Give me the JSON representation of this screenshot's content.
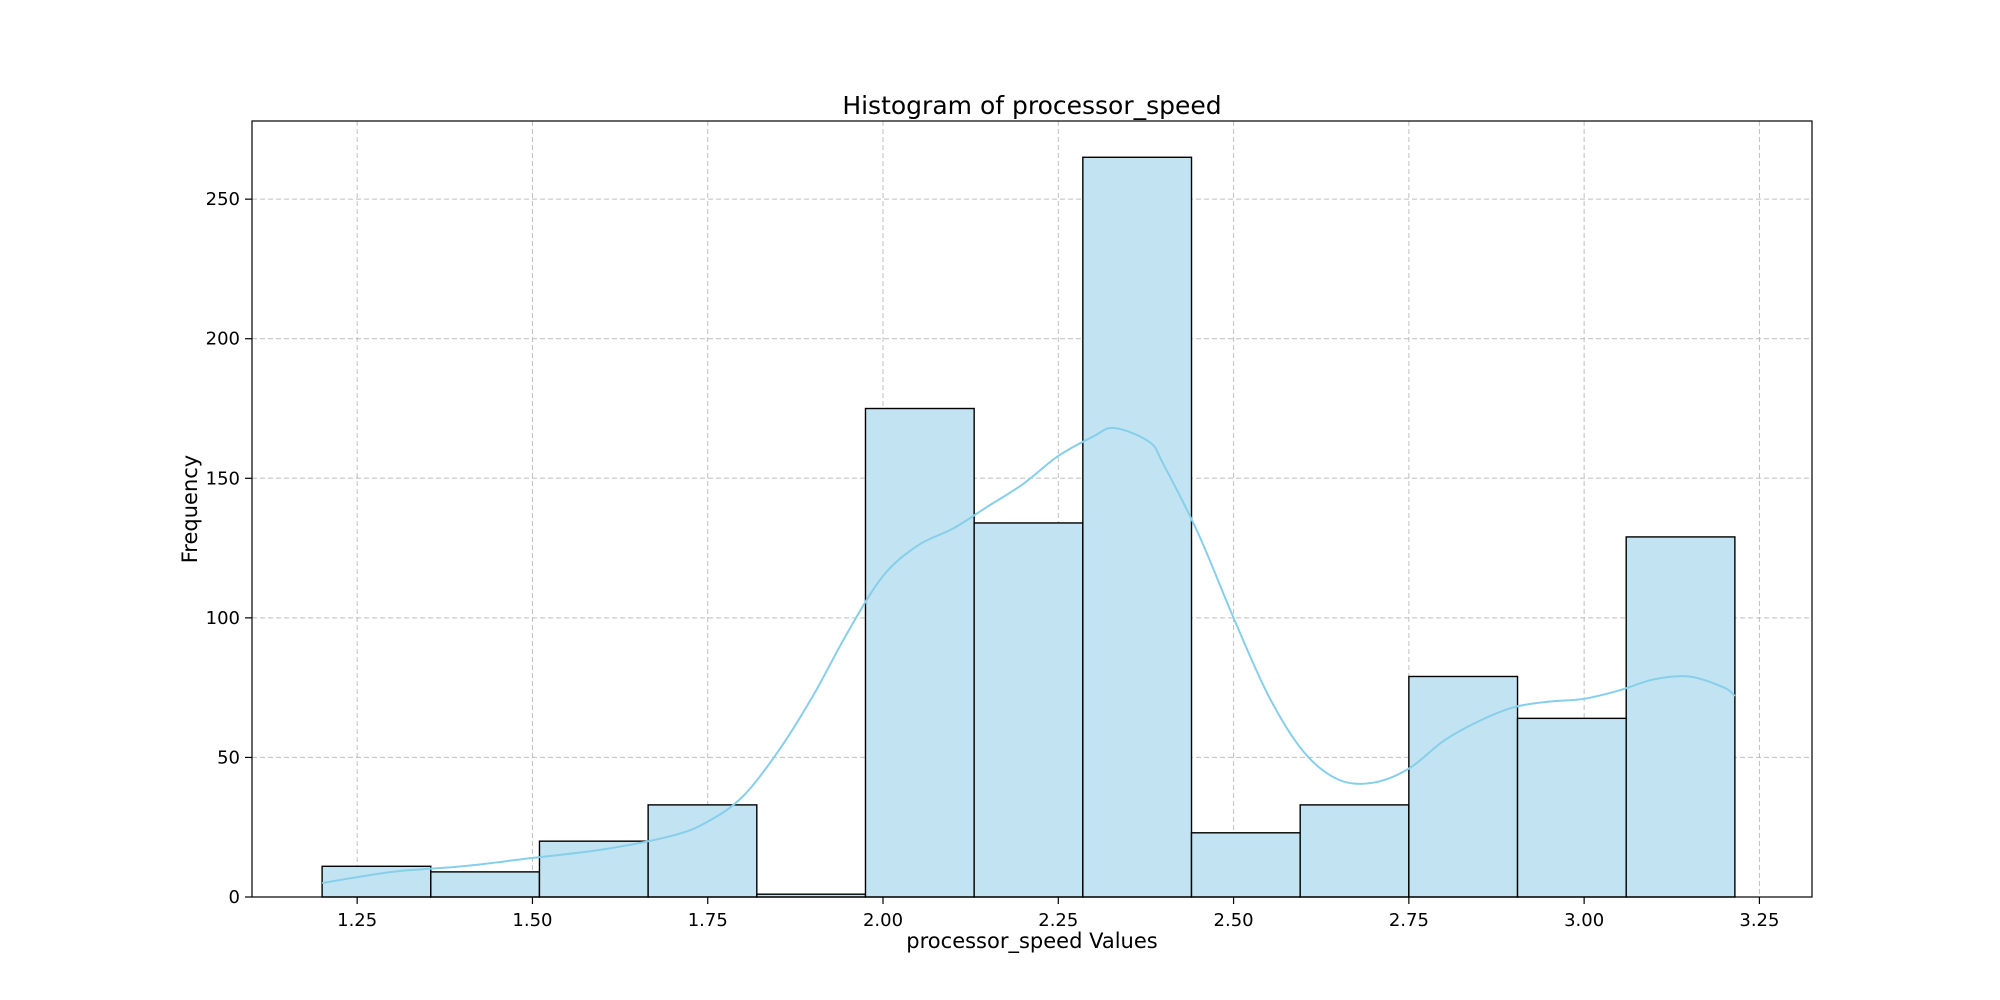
{
  "chart_data": {
    "type": "bar",
    "title": "Histogram of processor_speed",
    "xlabel": "processor_speed Values",
    "ylabel": "Frequency",
    "bin_edges": [
      1.2,
      1.355,
      1.51,
      1.665,
      1.82,
      1.975,
      2.13,
      2.285,
      2.44,
      2.595,
      2.75,
      2.905,
      3.06,
      3.215
    ],
    "values": [
      11,
      9,
      20,
      33,
      1,
      175,
      134,
      265,
      23,
      33,
      79,
      64,
      129
    ],
    "kde": {
      "x": [
        1.2,
        1.3,
        1.4,
        1.5,
        1.6,
        1.7,
        1.75,
        1.8,
        1.85,
        1.9,
        1.95,
        2.0,
        2.05,
        2.1,
        2.15,
        2.2,
        2.25,
        2.3,
        2.33,
        2.38,
        2.4,
        2.45,
        2.5,
        2.55,
        2.6,
        2.65,
        2.7,
        2.75,
        2.8,
        2.85,
        2.9,
        2.95,
        3.0,
        3.05,
        3.1,
        3.15,
        3.2,
        3.215
      ],
      "y": [
        5,
        9,
        11,
        14,
        17,
        22,
        27,
        36,
        52,
        72,
        95,
        115,
        126,
        132,
        140,
        148,
        158,
        165,
        168,
        163,
        155,
        130,
        100,
        72,
        52,
        42,
        41,
        46,
        56,
        63,
        68,
        70,
        71,
        74,
        78,
        79,
        75,
        72
      ]
    },
    "xlim": [
      1.1,
      3.325
    ],
    "ylim": [
      0,
      278
    ],
    "xticks": [
      "1.25",
      "1.50",
      "1.75",
      "2.00",
      "2.25",
      "2.50",
      "2.75",
      "3.00",
      "3.25"
    ],
    "yticks": [
      "0",
      "50",
      "100",
      "150",
      "200",
      "250"
    ],
    "grid": true,
    "colors": {
      "bar_fill": "#c2e4f2",
      "kde_line": "#87ceeb",
      "edge": "#000000"
    }
  }
}
